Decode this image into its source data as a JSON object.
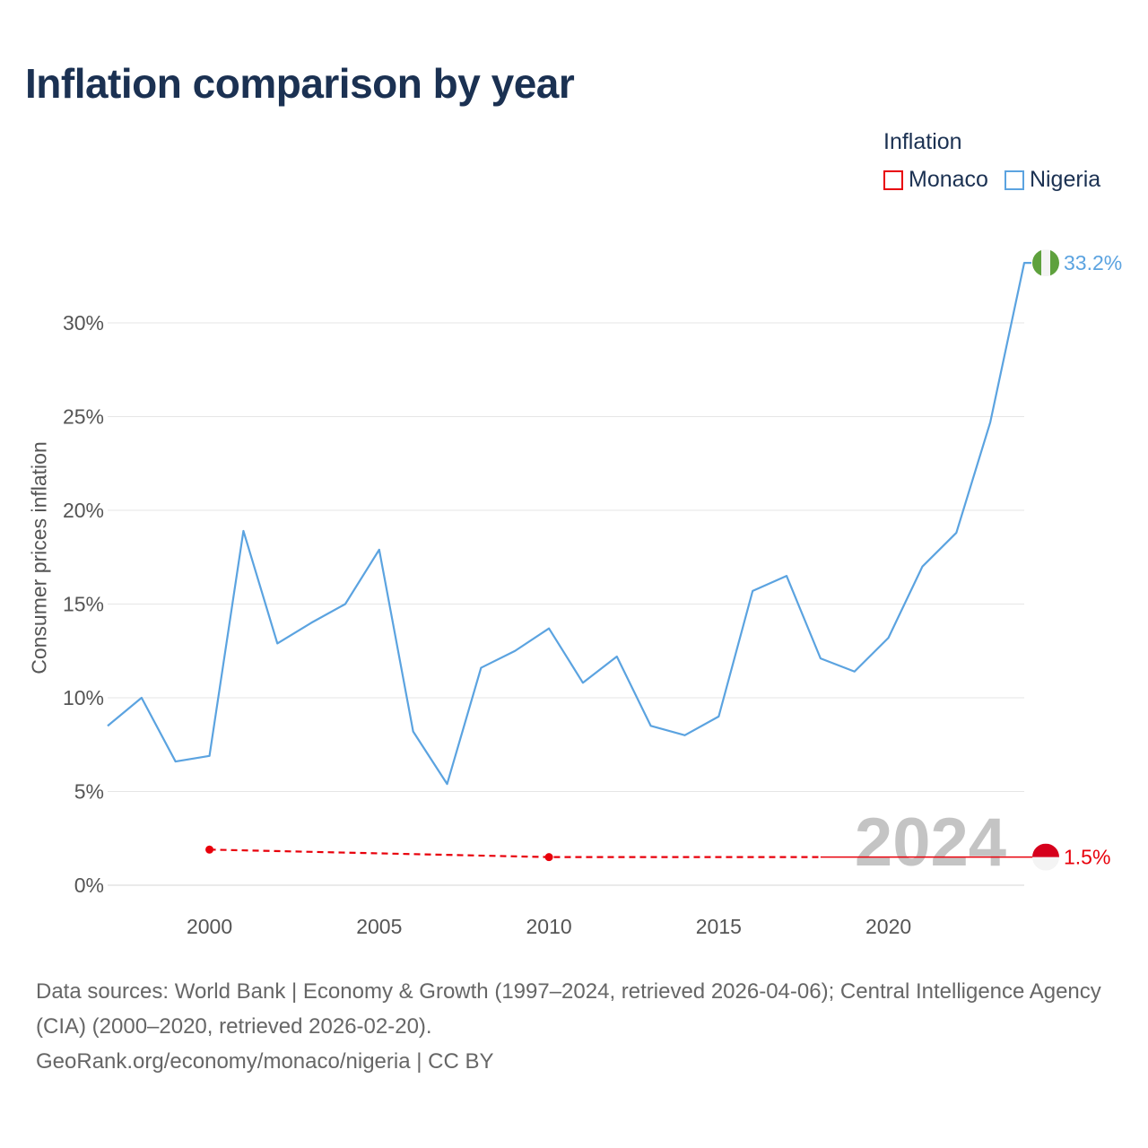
{
  "title": "Inflation comparison by year",
  "legend": {
    "title": "Inflation",
    "items": [
      {
        "label": "Monaco",
        "color": "#e8000b"
      },
      {
        "label": "Nigeria",
        "color": "#5ba3e0"
      }
    ]
  },
  "watermark_year": "2024",
  "footer": {
    "sources": "Data sources: World Bank | Economy & Growth (1997–2024, retrieved 2026-04-06); Central Intelligence Agency (CIA) (2000–2020, retrieved 2026-02-20).",
    "attribution": "GeoRank.org/economy/monaco/nigeria | CC BY"
  },
  "chart_data": {
    "type": "line",
    "title": "Inflation comparison by year",
    "xlabel": "",
    "ylabel": "Consumer prices inflation",
    "xlim": [
      1997,
      2024
    ],
    "ylim": [
      0,
      35
    ],
    "y_ticks": [
      0,
      5,
      10,
      15,
      20,
      25,
      30
    ],
    "y_tick_labels": [
      "0%",
      "5%",
      "10%",
      "15%",
      "20%",
      "25%",
      "30%"
    ],
    "x_ticks": [
      2000,
      2005,
      2010,
      2015,
      2020
    ],
    "x_tick_labels": [
      "2000",
      "2005",
      "2010",
      "2015",
      "2020"
    ],
    "grid": true,
    "series": [
      {
        "name": "Nigeria",
        "color": "#5ba3e0",
        "x": [
          1997,
          1998,
          1999,
          2000,
          2001,
          2002,
          2003,
          2004,
          2005,
          2006,
          2007,
          2008,
          2009,
          2010,
          2011,
          2012,
          2013,
          2014,
          2015,
          2016,
          2017,
          2018,
          2019,
          2020,
          2021,
          2022,
          2023,
          2024
        ],
        "values": [
          8.5,
          10.0,
          6.6,
          6.9,
          18.9,
          12.9,
          14.0,
          15.0,
          17.9,
          8.2,
          5.4,
          11.6,
          12.5,
          13.7,
          10.8,
          12.2,
          8.5,
          8.0,
          9.0,
          15.7,
          16.5,
          12.1,
          11.4,
          13.2,
          17.0,
          18.8,
          24.7,
          33.2
        ],
        "end_label": "33.2%",
        "flag_colors": [
          "#5ea13d",
          "#f4f4f4",
          "#5ea13d"
        ]
      },
      {
        "name": "Monaco",
        "color": "#e8000b",
        "x": [
          2000,
          2010,
          2018,
          2024
        ],
        "values": [
          1.9,
          1.5,
          1.5,
          1.5
        ],
        "point_years": [
          2000,
          2010
        ],
        "dashed_until": 2018,
        "end_label": "1.5%",
        "flag_colors": [
          "#d6001c",
          "#f4f4f4"
        ]
      }
    ]
  }
}
